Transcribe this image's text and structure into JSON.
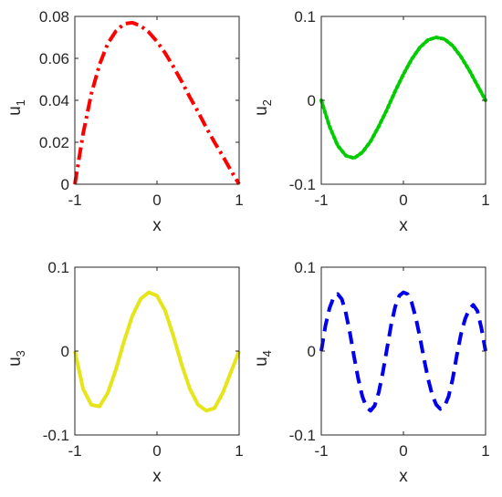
{
  "chart_data": [
    {
      "type": "line",
      "xlabel": "x",
      "ylabel": "u",
      "ylabel_sub": "1",
      "xlim": [
        -1,
        1
      ],
      "ylim": [
        0,
        0.08
      ],
      "xticks": [
        "-1",
        "0",
        "1"
      ],
      "yticks": [
        "0",
        "0.02",
        "0.04",
        "0.06",
        "0.08"
      ],
      "grid": false,
      "series": [
        {
          "color": "#ff0000",
          "style": "dashdot",
          "x": [
            -1,
            -0.9,
            -0.8,
            -0.7,
            -0.6,
            -0.5,
            -0.4,
            -0.3,
            -0.2,
            -0.1,
            0,
            0.1,
            0.2,
            0.3,
            0.4,
            0.5,
            0.6,
            0.7,
            0.8,
            0.9,
            1
          ],
          "y": [
            0,
            0.024,
            0.043,
            0.057,
            0.067,
            0.073,
            0.0765,
            0.077,
            0.0755,
            0.0725,
            0.068,
            0.0625,
            0.056,
            0.049,
            0.0415,
            0.0345,
            0.027,
            0.02,
            0.0135,
            0.0065,
            0
          ]
        }
      ]
    },
    {
      "type": "line",
      "xlabel": "x",
      "ylabel": "u",
      "ylabel_sub": "2",
      "xlim": [
        -1,
        1
      ],
      "ylim": [
        -0.1,
        0.1
      ],
      "xticks": [
        "-1",
        "0",
        "1"
      ],
      "yticks": [
        "-0.1",
        "0",
        "0.1"
      ],
      "grid": false,
      "series": [
        {
          "color": "#00cc00",
          "style": "dotted",
          "x": [
            -1,
            -0.9,
            -0.8,
            -0.7,
            -0.6,
            -0.5,
            -0.4,
            -0.3,
            -0.2,
            -0.1,
            0,
            0.1,
            0.2,
            0.3,
            0.4,
            0.5,
            0.6,
            0.7,
            0.8,
            0.9,
            1
          ],
          "y": [
            0,
            -0.031,
            -0.054,
            -0.066,
            -0.069,
            -0.062,
            -0.049,
            -0.031,
            -0.011,
            0.011,
            0.031,
            0.049,
            0.063,
            0.072,
            0.075,
            0.073,
            0.065,
            0.052,
            0.036,
            0.018,
            0
          ]
        }
      ]
    },
    {
      "type": "line",
      "xlabel": "x",
      "ylabel": "u",
      "ylabel_sub": "3",
      "xlim": [
        -1,
        1
      ],
      "ylim": [
        -0.1,
        0.1
      ],
      "xticks": [
        "-1",
        "0",
        "1"
      ],
      "yticks": [
        "-0.1",
        "0",
        "0.1"
      ],
      "grid": false,
      "series": [
        {
          "color": "#e5e51a",
          "style": "solid",
          "x": [
            -1,
            -0.9,
            -0.8,
            -0.7,
            -0.6,
            -0.5,
            -0.4,
            -0.3,
            -0.2,
            -0.1,
            0,
            0.1,
            0.2,
            0.3,
            0.4,
            0.5,
            0.6,
            0.7,
            0.8,
            0.9,
            1
          ],
          "y": [
            0,
            -0.045,
            -0.064,
            -0.066,
            -0.05,
            -0.022,
            0.012,
            0.042,
            0.062,
            0.07,
            0.066,
            0.048,
            0.018,
            -0.016,
            -0.045,
            -0.064,
            -0.071,
            -0.068,
            -0.05,
            -0.025,
            0
          ]
        }
      ]
    },
    {
      "type": "line",
      "xlabel": "x",
      "ylabel": "u",
      "ylabel_sub": "4",
      "xlim": [
        -1,
        1
      ],
      "ylim": [
        -0.1,
        0.1
      ],
      "xticks": [
        "-1",
        "0",
        "1"
      ],
      "yticks": [
        "-0.1",
        "0",
        "0.1"
      ],
      "grid": false,
      "series": [
        {
          "color": "#0000ee",
          "style": "dashed",
          "x": [
            -1,
            -0.95,
            -0.9,
            -0.85,
            -0.8,
            -0.75,
            -0.7,
            -0.65,
            -0.6,
            -0.55,
            -0.5,
            -0.45,
            -0.4,
            -0.35,
            -0.3,
            -0.25,
            -0.2,
            -0.15,
            -0.1,
            -0.05,
            0,
            0.05,
            0.1,
            0.15,
            0.2,
            0.25,
            0.3,
            0.35,
            0.4,
            0.45,
            0.5,
            0.55,
            0.6,
            0.65,
            0.7,
            0.75,
            0.8,
            0.85,
            0.9,
            0.95,
            1
          ],
          "y": [
            0,
            0.03,
            0.051,
            0.064,
            0.068,
            0.062,
            0.045,
            0.021,
            -0.007,
            -0.033,
            -0.054,
            -0.067,
            -0.071,
            -0.065,
            -0.049,
            -0.025,
            0.003,
            0.031,
            0.053,
            0.066,
            0.07,
            0.068,
            0.058,
            0.04,
            0.017,
            -0.009,
            -0.033,
            -0.052,
            -0.064,
            -0.069,
            -0.066,
            -0.054,
            -0.033,
            -0.005,
            0.02,
            0.038,
            0.05,
            0.055,
            0.048,
            0.027,
            0
          ]
        }
      ]
    }
  ]
}
